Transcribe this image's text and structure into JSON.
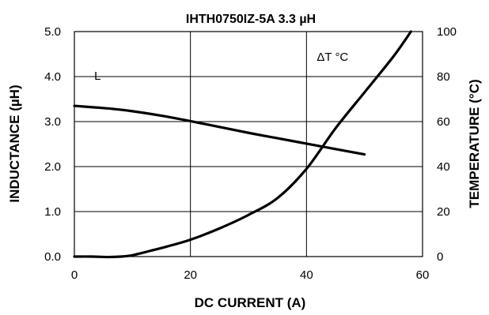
{
  "chart_data": {
    "type": "line",
    "title": "IHTH0750IZ-5A 3.3 µH",
    "xlabel": "DC CURRENT (A)",
    "ylabel_left": "INDUCTANCE (µH)",
    "ylabel_right": "TEMPERATURE (°C)",
    "xlim": [
      0,
      60
    ],
    "ylim_left": [
      0,
      5
    ],
    "ylim_right": [
      0,
      100
    ],
    "x_ticks": [
      "0",
      "20",
      "40",
      "60"
    ],
    "x_tick_values": [
      0,
      20,
      40,
      60
    ],
    "y_left_ticks": [
      "0.0",
      "1.0",
      "2.0",
      "3.0",
      "4.0",
      "5.0"
    ],
    "y_left_tick_values": [
      0,
      1,
      2,
      3,
      4,
      5
    ],
    "y_right_ticks": [
      "0",
      "20",
      "40",
      "60",
      "80",
      "100"
    ],
    "y_right_tick_values": [
      0,
      20,
      40,
      60,
      80,
      100
    ],
    "grid": true,
    "series": [
      {
        "name": "L",
        "axis": "left",
        "x": [
          0,
          3,
          6,
          10,
          15,
          20,
          25,
          30,
          35,
          40,
          45,
          50
        ],
        "values": [
          3.35,
          3.32,
          3.29,
          3.23,
          3.13,
          3.01,
          2.88,
          2.75,
          2.63,
          2.51,
          2.39,
          2.27
        ]
      },
      {
        "name": "ΔT °C",
        "axis": "right",
        "x": [
          0,
          3,
          6,
          8,
          10,
          13,
          16,
          20,
          25,
          30,
          35,
          40,
          45,
          50,
          55,
          58
        ],
        "values": [
          0,
          0,
          -0.2,
          0,
          0.6,
          2.5,
          4.5,
          7.5,
          12.5,
          18.5,
          26,
          39,
          57,
          73,
          89,
          100
        ]
      }
    ],
    "annotations": [
      {
        "text": "L",
        "series": "L"
      },
      {
        "text": "ΔT °C",
        "series": "ΔT °C"
      }
    ]
  }
}
